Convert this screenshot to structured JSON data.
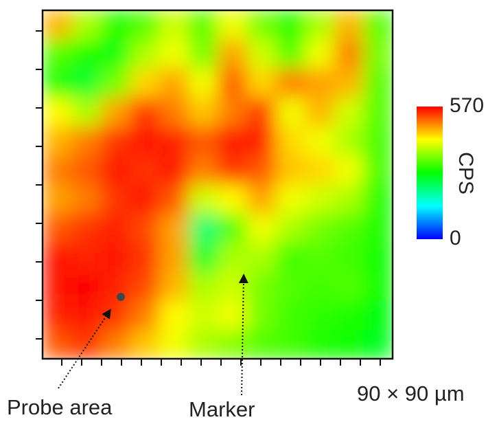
{
  "chart_data": {
    "type": "heatmap",
    "values": [
      [
        470,
        380,
        300,
        330,
        400,
        330,
        420,
        350,
        300,
        380,
        470,
        330
      ],
      [
        330,
        300,
        280,
        380,
        420,
        350,
        480,
        400,
        330,
        420,
        500,
        350
      ],
      [
        300,
        260,
        350,
        450,
        480,
        420,
        520,
        450,
        500,
        480,
        470,
        330
      ],
      [
        430,
        380,
        480,
        540,
        500,
        460,
        500,
        540,
        420,
        470,
        400,
        330
      ],
      [
        470,
        500,
        540,
        560,
        550,
        520,
        560,
        550,
        450,
        420,
        380,
        320
      ],
      [
        500,
        520,
        560,
        540,
        560,
        500,
        540,
        520,
        460,
        450,
        420,
        320
      ],
      [
        480,
        500,
        540,
        560,
        520,
        400,
        430,
        480,
        420,
        400,
        380,
        300
      ],
      [
        520,
        540,
        550,
        530,
        480,
        220,
        330,
        420,
        380,
        350,
        330,
        300
      ],
      [
        560,
        550,
        560,
        540,
        480,
        260,
        380,
        380,
        320,
        330,
        320,
        290
      ],
      [
        560,
        570,
        550,
        530,
        470,
        380,
        400,
        350,
        330,
        320,
        330,
        290
      ],
      [
        550,
        560,
        540,
        500,
        430,
        400,
        420,
        350,
        320,
        310,
        300,
        280
      ],
      [
        520,
        540,
        500,
        460,
        420,
        380,
        360,
        330,
        320,
        300,
        290,
        270
      ]
    ],
    "zlim": [
      0,
      570
    ],
    "zticks": [
      0,
      570
    ],
    "colormap": [
      "#0000ff",
      "#00ffff",
      "#00ff00",
      "#ffff00",
      "#ff0000"
    ],
    "colorbar_label": "CPS",
    "annotations": [
      "Probe area",
      "Marker"
    ],
    "scale_label": "90 × 90 µm"
  }
}
